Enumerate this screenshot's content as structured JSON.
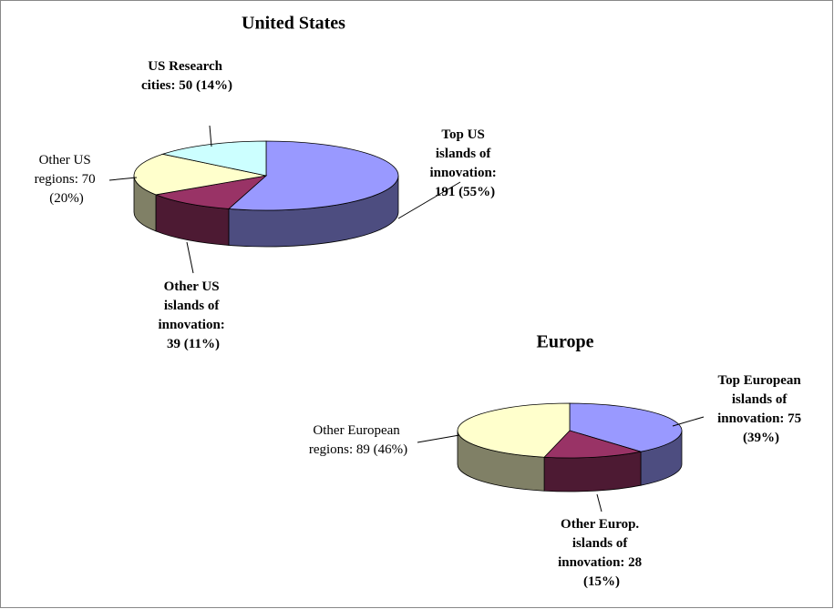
{
  "chart_data": [
    {
      "type": "pie3d",
      "title": "United States",
      "values": [
        191,
        39,
        70,
        50
      ],
      "value_labels": [
        "Top US islands of innovation: 191 (55%)",
        "Other US islands of innovation: 39 (11%)",
        "Other US regions: 70 (20%)",
        "US Research cities: 50 (14%)"
      ],
      "colors": [
        "#9999ff",
        "#993366",
        "#ffffcc",
        "#ccffff"
      ]
    },
    {
      "type": "pie3d",
      "title": "Europe",
      "values": [
        75,
        28,
        89
      ],
      "value_labels": [
        "Top European islands of innovation: 75 (39%)",
        "Other Europ. islands of innovation: 28 (15%)",
        "Other European regions: 89 (46%)"
      ],
      "colors": [
        "#9999ff",
        "#993366",
        "#ffffcc"
      ]
    }
  ]
}
